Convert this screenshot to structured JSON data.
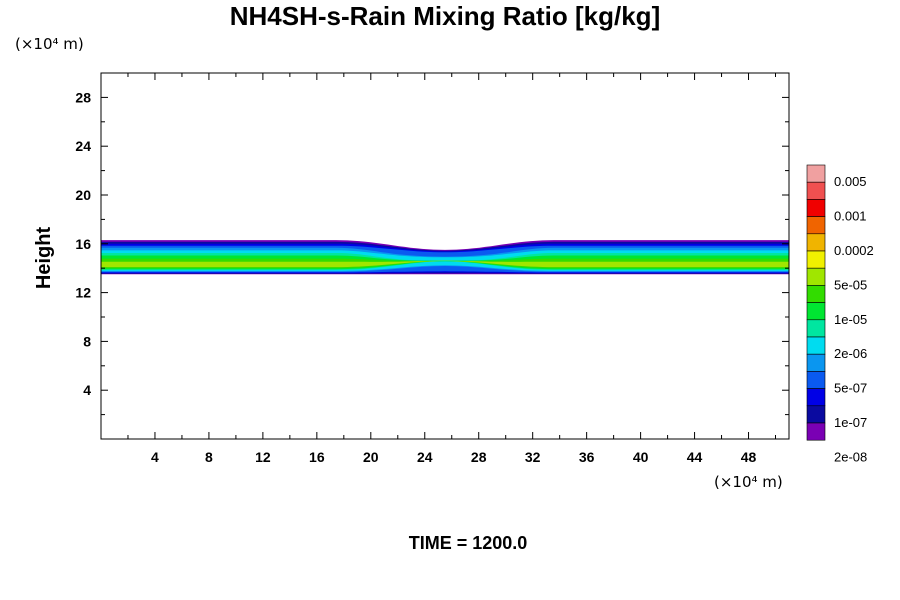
{
  "chart_data": {
    "type": "contour",
    "title": "NH4SH-s-Rain Mixing Ratio [kg/kg]",
    "ylabel": "Height",
    "x_unit": "(×10⁴ m)",
    "y_unit": "(×10⁴ m)",
    "xlim": [
      0,
      51
    ],
    "ylim": [
      0,
      30
    ],
    "x_ticks": [
      4,
      8,
      12,
      16,
      20,
      24,
      28,
      32,
      36,
      40,
      44,
      48
    ],
    "y_ticks": [
      4,
      8,
      12,
      16,
      20,
      24,
      28
    ],
    "x_tick_labels": [
      "4",
      "8",
      "12",
      "16",
      "20",
      "24",
      "28",
      "32",
      "36",
      "40",
      "44",
      "48"
    ],
    "y_tick_labels": [
      "4",
      "8",
      "12",
      "16",
      "20",
      "24",
      "28"
    ],
    "legend": {
      "levels": [
        "2e-08",
        "1e-07",
        "5e-07",
        "2e-06",
        "1e-05",
        "5e-05",
        "0.0002",
        "0.001",
        "0.005"
      ],
      "colors": [
        "#7a00b4",
        "#0a0aa0",
        "#0000e6",
        "#0a5af0",
        "#0a96f0",
        "#00dcf0",
        "#00e6a0",
        "#00e632",
        "#32dc00",
        "#a0e600",
        "#f0f000",
        "#f0b400",
        "#f06400",
        "#f00000",
        "#f05050",
        "#f0a0a0"
      ]
    },
    "field": {
      "variable": "NH4SH-s-Rain mixing ratio",
      "layer_bottom": 13.5,
      "layer_top_edge": 16.3,
      "layer_top_center": 15.5,
      "core_height_edge": 14.2,
      "core_height_center": 14.6,
      "dip_center_x": 25.5,
      "dip_half_width": 8
    },
    "time_label": "TIME = 1200.0"
  }
}
